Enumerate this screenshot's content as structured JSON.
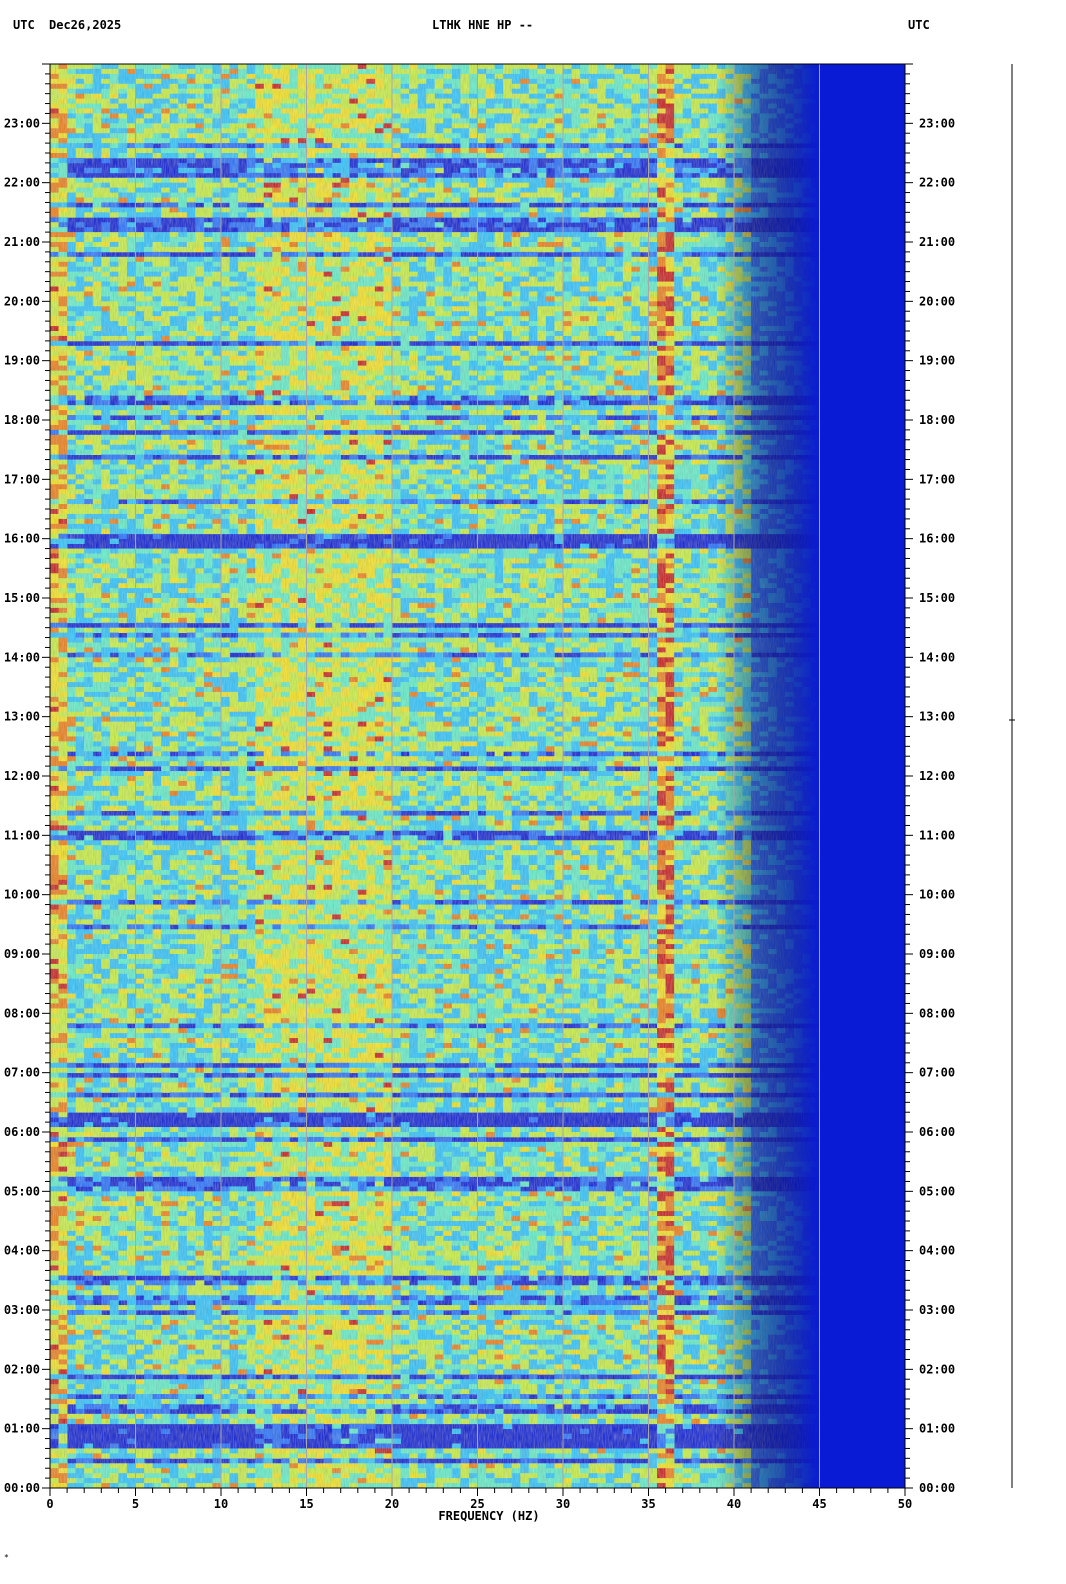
{
  "header": {
    "left_tz": "UTC",
    "date": "Dec26,2025",
    "station": "LTHK HNE HP --",
    "right_tz": "UTC"
  },
  "chart_data": {
    "type": "heatmap",
    "xlabel": "FREQUENCY (HZ)",
    "xlim": [
      0,
      50
    ],
    "x_ticks": [
      0,
      5,
      10,
      15,
      20,
      25,
      30,
      35,
      40,
      45,
      50
    ],
    "ylim_hours_utc": [
      0,
      24
    ],
    "y_ticks": [
      "00:00",
      "01:00",
      "02:00",
      "03:00",
      "04:00",
      "05:00",
      "06:00",
      "07:00",
      "08:00",
      "09:00",
      "10:00",
      "11:00",
      "12:00",
      "13:00",
      "14:00",
      "15:00",
      "16:00",
      "17:00",
      "18:00",
      "19:00",
      "20:00",
      "21:00",
      "22:00",
      "23:00"
    ],
    "grid": "vertical every 5 Hz",
    "colormap": [
      "#0a1bd6",
      "#1f6cff",
      "#27c3ff",
      "#5df0c8",
      "#c8f23c",
      "#f7e41a",
      "#f07a10",
      "#c81818"
    ],
    "features": {
      "energy_cutoff_hz": 43,
      "quiet_bands_utc": [
        {
          "start": 6.1,
          "end": 6.3
        },
        {
          "start": 15.8,
          "end": 16.1
        },
        {
          "start": 0.7,
          "end": 1.1
        }
      ],
      "tonal_line_hz": 36
    }
  }
}
